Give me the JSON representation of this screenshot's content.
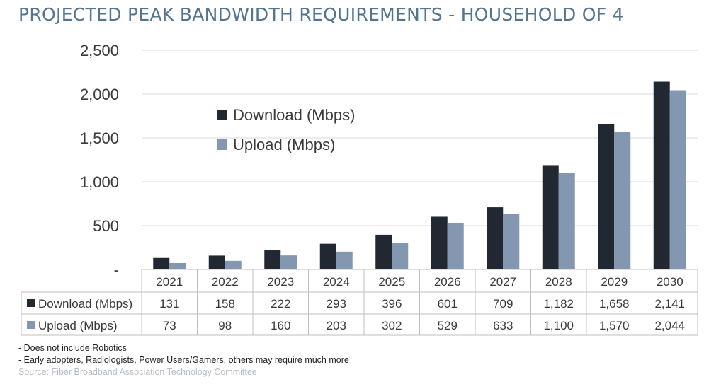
{
  "chart_data": {
    "type": "bar",
    "title": "PROJECTED PEAK BANDWIDTH REQUIREMENTS - HOUSEHOLD OF 4",
    "categories": [
      "2021",
      "2022",
      "2023",
      "2024",
      "2025",
      "2026",
      "2027",
      "2028",
      "2029",
      "2030"
    ],
    "series": [
      {
        "name": "Download (Mbps)",
        "color": "#222831",
        "values": [
          131,
          158,
          222,
          293,
          396,
          601,
          709,
          1182,
          1658,
          2141
        ],
        "labels": [
          "131",
          "158",
          "222",
          "293",
          "396",
          "601",
          "709",
          "1,182",
          "1,658",
          "2,141"
        ]
      },
      {
        "name": "Upload (Mbps)",
        "color": "#8497b0",
        "values": [
          73,
          98,
          160,
          203,
          302,
          529,
          633,
          1100,
          1570,
          2044
        ],
        "labels": [
          "73",
          "98",
          "160",
          "203",
          "302",
          "529",
          "633",
          "1,100",
          "1,570",
          "2,044"
        ]
      }
    ],
    "ylim": [
      0,
      2500
    ],
    "yticks": [
      0,
      500,
      1000,
      1500,
      2000,
      2500
    ],
    "ytick_labels": [
      "-",
      "500",
      "1,000",
      "1,500",
      "2,000",
      "2,500"
    ],
    "grid": true,
    "legend": "upper-left",
    "data_table": true
  },
  "notes": [
    "- Does not include Robotics",
    "- Early adopters, Radiologists, Power Users/Gamers, others may require much more"
  ],
  "source": "Source: Fiber Broadband Association Technology Committee"
}
